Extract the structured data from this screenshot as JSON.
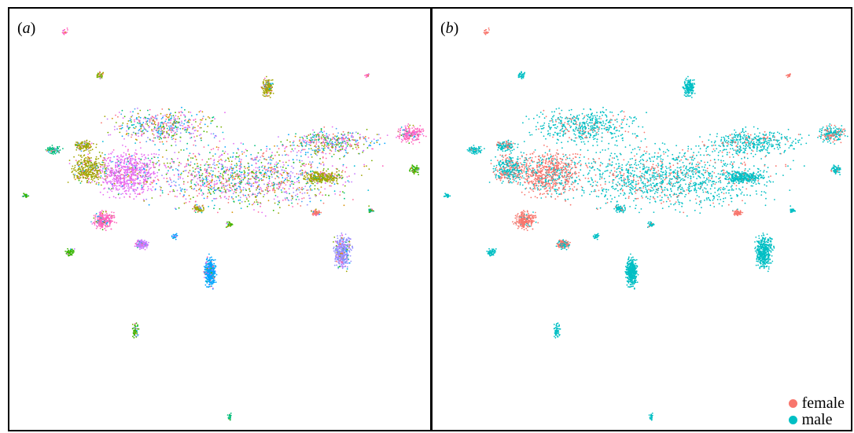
{
  "chart_data": [
    {
      "type": "scatter",
      "panel_label": "a",
      "title": "",
      "xlabel": "",
      "ylabel": "",
      "axes_visible": false,
      "grid": false,
      "colors": [
        "#f8766d",
        "#7cae00",
        "#a3a500",
        "#39b600",
        "#00bf7d",
        "#00bcd8",
        "#00a5ff",
        "#9590ff",
        "#e76bf3",
        "#ff62bc",
        "#d89000",
        "#4fa5f0",
        "#c77cff",
        "#e36ef2",
        "#ff6a98"
      ],
      "note_legend": "none"
    },
    {
      "type": "scatter",
      "panel_label": "b",
      "title": "",
      "xlabel": "",
      "ylabel": "",
      "axes_visible": false,
      "grid": false,
      "legend_position": "bottom-right",
      "series": [
        {
          "name": "female",
          "color": "#f8766d"
        },
        {
          "name": "male",
          "color": "#00bfc4"
        }
      ]
    }
  ]
}
